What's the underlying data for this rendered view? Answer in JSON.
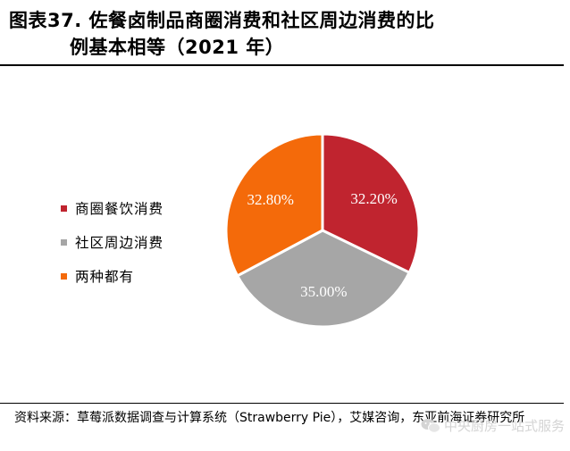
{
  "title": {
    "line1": "图表37. 佐餐卤制品商圈消费和社区周边消费的比",
    "line2": "例基本相等（2021 年）"
  },
  "chart_data": {
    "type": "pie",
    "slices": [
      {
        "label": "商圈餐饮消费",
        "value": 32.2,
        "display": "32.20%",
        "color": "#c0242f"
      },
      {
        "label": "社区周边消费",
        "value": 35.0,
        "display": "35.00%",
        "color": "#a6a6a6"
      },
      {
        "label": "两种都有",
        "value": 32.8,
        "display": "32.80%",
        "color": "#f46a0a"
      }
    ],
    "legend_position": "left",
    "start": "12 o'clock, clockwise"
  },
  "legend": [
    {
      "label": "商圈餐饮消费",
      "color": "#c0242f"
    },
    {
      "label": "社区周边消费",
      "color": "#a6a6a6"
    },
    {
      "label": "两种都有",
      "color": "#f46a0a"
    }
  ],
  "source": "资料来源：草莓派数据调查与计算系统（Strawberry Pie），艾媒咨询，东亚前海证券研究所",
  "watermark": "中央厨房一站式服务"
}
